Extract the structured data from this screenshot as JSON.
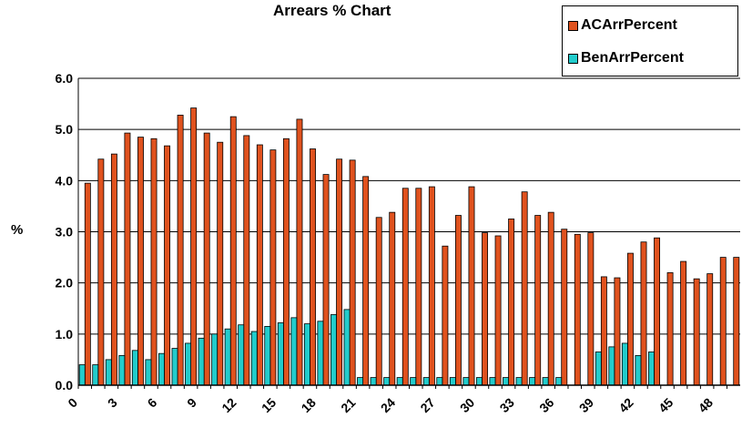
{
  "chart_data": {
    "type": "bar",
    "title": "Arrears % Chart",
    "ylabel": "%",
    "xlabel": "",
    "ylim": [
      0,
      6
    ],
    "yticks": [
      "0.0",
      "1.0",
      "2.0",
      "3.0",
      "4.0",
      "5.0",
      "6.0"
    ],
    "x_tick_labels": [
      "0",
      "3",
      "6",
      "9",
      "12",
      "15",
      "18",
      "21",
      "24",
      "27",
      "30",
      "33",
      "36",
      "39",
      "42",
      "45",
      "48"
    ],
    "categories": [
      0,
      1,
      2,
      3,
      4,
      5,
      6,
      7,
      8,
      9,
      10,
      11,
      12,
      13,
      14,
      15,
      16,
      17,
      18,
      19,
      20,
      21,
      22,
      23,
      24,
      25,
      26,
      27,
      28,
      29,
      30,
      31,
      32,
      33,
      34,
      35,
      36,
      37,
      38,
      39,
      40,
      41,
      42,
      43,
      44,
      45,
      46,
      47,
      48,
      49
    ],
    "grid": "horizontal",
    "legend_position": "top-right",
    "series": [
      {
        "name": "ACArrPercent",
        "color": "#e0521e",
        "values": [
          3.95,
          4.42,
          4.52,
          4.93,
          4.85,
          4.82,
          4.68,
          5.28,
          5.42,
          4.93,
          4.75,
          5.25,
          4.88,
          4.7,
          4.6,
          4.82,
          5.2,
          4.62,
          4.12,
          4.42,
          4.4,
          4.08,
          3.28,
          3.38,
          3.85,
          3.85,
          3.88,
          2.72,
          3.32,
          3.88,
          2.98,
          2.92,
          3.25,
          3.78,
          3.32,
          3.38,
          3.05,
          2.95,
          2.98,
          2.12,
          2.1,
          2.58,
          2.8,
          2.88,
          2.2,
          2.42,
          2.08,
          2.18,
          2.5,
          2.5
        ]
      },
      {
        "name": "BenArrPercent",
        "color": "#22cccc",
        "values": [
          0.4,
          0.4,
          0.5,
          0.58,
          0.68,
          0.5,
          0.62,
          0.72,
          0.82,
          0.92,
          1.0,
          1.1,
          1.18,
          1.05,
          1.15,
          1.22,
          1.32,
          1.2,
          1.25,
          1.38,
          1.48,
          0.15,
          0.15,
          0.15,
          0.15,
          0.15,
          0.15,
          0.15,
          0.15,
          0.15,
          0.15,
          0.15,
          0.15,
          0.15,
          0.15,
          0.15,
          0.15,
          0,
          0,
          0.65,
          0.75,
          0.82,
          0.58,
          0.65,
          0,
          0,
          0,
          0,
          0,
          0
        ]
      }
    ]
  }
}
